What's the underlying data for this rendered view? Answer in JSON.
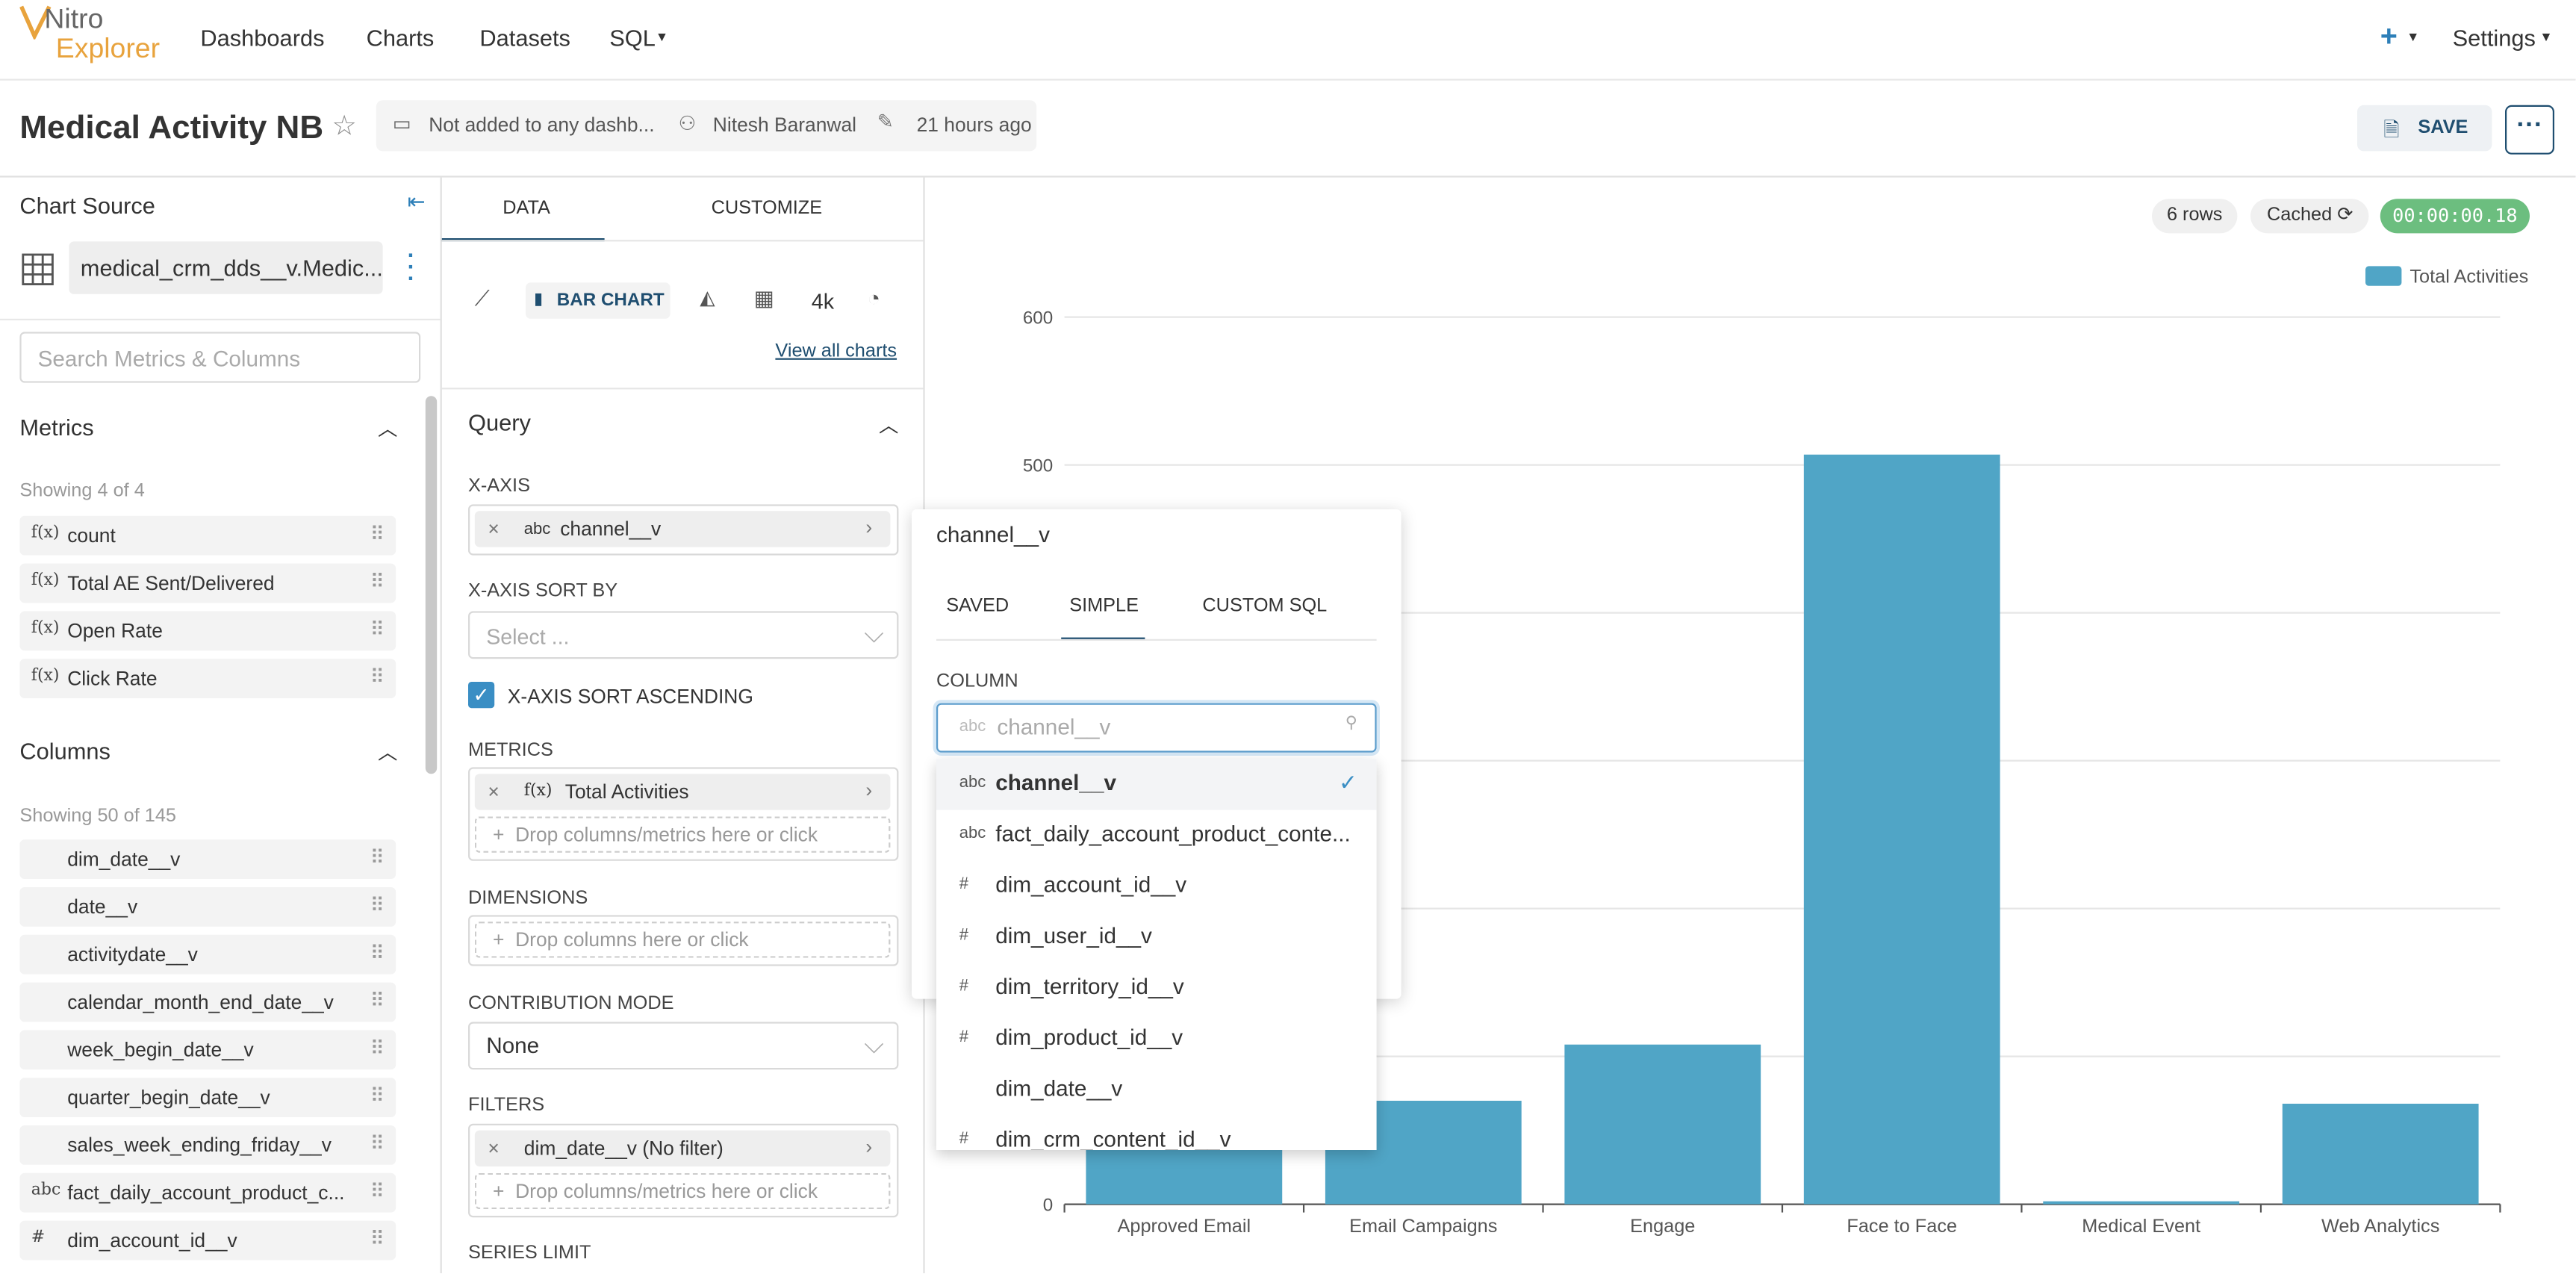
{
  "nav": {
    "logo_top": "Nitro",
    "logo_bottom": "Explorer",
    "items": [
      "Dashboards",
      "Charts",
      "Datasets",
      "SQL"
    ],
    "settings": "Settings"
  },
  "header": {
    "title": "Medical Activity NB",
    "dashboards": "Not added to any dashb...",
    "owner": "Nitesh Baranwal",
    "modified": "21 hours ago",
    "save": "SAVE"
  },
  "source": {
    "heading": "Chart Source",
    "dataset": "medical_crm_dds__v.Medic...",
    "search_placeholder": "Search Metrics & Columns",
    "metrics_heading": "Metrics",
    "metrics_count": "Showing 4 of 4",
    "metrics": [
      {
        "type": "f(x)",
        "name": "count"
      },
      {
        "type": "f(x)",
        "name": "Total AE Sent/Delivered"
      },
      {
        "type": "f(x)",
        "name": "Open Rate"
      },
      {
        "type": "f(x)",
        "name": "Click Rate"
      }
    ],
    "columns_heading": "Columns",
    "columns_count": "Showing 50 of 145",
    "columns": [
      {
        "name": "dim_date__v"
      },
      {
        "name": "date__v"
      },
      {
        "name": "activitydate__v"
      },
      {
        "name": "calendar_month_end_date__v"
      },
      {
        "name": "week_begin_date__v"
      },
      {
        "name": "quarter_begin_date__v"
      },
      {
        "name": "sales_week_ending_friday__v"
      },
      {
        "type": "abc",
        "name": "fact_daily_account_product_c..."
      },
      {
        "type": "#",
        "name": "dim_account_id__v"
      }
    ]
  },
  "query": {
    "tabs": [
      "DATA",
      "CUSTOMIZE"
    ],
    "chart_type": "BAR CHART",
    "big_number": "4k",
    "view_all": "View all charts",
    "heading": "Query",
    "x_axis_label": "X-AXIS",
    "x_axis": {
      "type": "abc",
      "name": "channel__v"
    },
    "sort_by_label": "X-AXIS SORT BY",
    "sort_by_placeholder": "Select ...",
    "sort_ascending": "X-AXIS SORT ASCENDING",
    "metrics_label": "METRICS",
    "metric": {
      "type": "f(x)",
      "name": "Total Activities"
    },
    "metrics_drop": "Drop columns/metrics here or click",
    "dimensions_label": "DIMENSIONS",
    "dimensions_drop": "Drop columns here or click",
    "contribution_label": "CONTRIBUTION MODE",
    "contribution_value": "None",
    "filters_label": "FILTERS",
    "filter": "dim_date__v (No filter)",
    "filters_drop": "Drop columns/metrics here or click",
    "series_limit_label": "SERIES LIMIT"
  },
  "status": {
    "rows": "6 rows",
    "cached": "Cached",
    "timer": "00:00:00.18"
  },
  "popover": {
    "title": "channel__v",
    "tabs": [
      "SAVED",
      "SIMPLE",
      "CUSTOM SQL"
    ],
    "column_label": "COLUMN",
    "input_type": "abc",
    "input_placeholder": "channel__v",
    "options": [
      {
        "type": "abc",
        "name": "channel__v"
      },
      {
        "type": "abc",
        "name": "fact_daily_account_product_conte..."
      },
      {
        "type": "#",
        "name": "dim_account_id__v"
      },
      {
        "type": "#",
        "name": "dim_user_id__v"
      },
      {
        "type": "#",
        "name": "dim_territory_id__v"
      },
      {
        "type": "#",
        "name": "dim_product_id__v"
      },
      {
        "name": "dim_date__v"
      },
      {
        "type": "#",
        "name": "dim_crm_content_id__v"
      }
    ]
  },
  "chart_data": {
    "type": "bar",
    "categories": [
      "Approved Email",
      "Email Campaigns",
      "Engage",
      "Face to Face",
      "Medical Event",
      "Web Analytics"
    ],
    "series": [
      {
        "name": "Total Activities",
        "color": "#50a5c6",
        "values": [
          50,
          70,
          108,
          507,
          2,
          68
        ]
      }
    ],
    "ylim": [
      0,
      600
    ],
    "yticks": [
      0,
      100,
      200,
      300,
      400,
      500,
      600
    ],
    "grid": true,
    "legend": "top-right"
  }
}
